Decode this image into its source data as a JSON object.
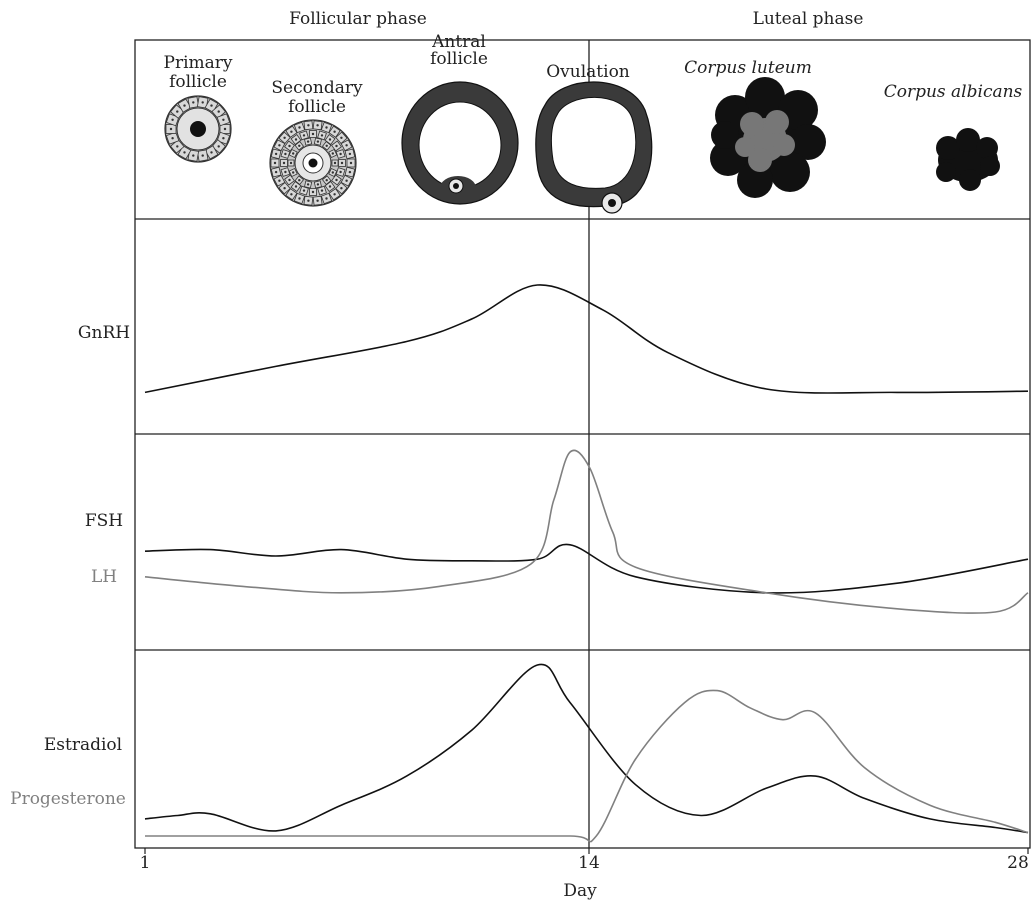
{
  "phases": {
    "follicular": "Follicular phase",
    "luteal": "Luteal phase"
  },
  "stages": {
    "primary": [
      "Primary",
      "follicle"
    ],
    "secondary": [
      "Secondary",
      "follicle"
    ],
    "antral": [
      "Antral",
      "follicle"
    ],
    "ovulation": "Ovulation",
    "corpus_luteum": "Corpus luteum",
    "corpus_albicans": "Corpus albicans"
  },
  "panels": {
    "gnrh": "GnRH",
    "fsh": "FSH",
    "lh": "LH",
    "estradiol": "Estradiol",
    "progesterone": "Progesterone"
  },
  "axis": {
    "ticks": [
      "1",
      "14",
      "28"
    ],
    "label": "Day"
  },
  "colors": {
    "black_curve": "#111111",
    "grey_curve": "#808080"
  },
  "chart_data": [
    {
      "type": "line",
      "x_range": [
        1,
        28
      ],
      "series": [
        {
          "name": "GnRH",
          "x": [
            1,
            5,
            9,
            11,
            13,
            15,
            17,
            20,
            24,
            28
          ],
          "y": [
            0.05,
            0.28,
            0.5,
            0.7,
            1.0,
            0.78,
            0.4,
            0.08,
            0.05,
            0.06
          ]
        }
      ]
    },
    {
      "type": "line",
      "x_range": [
        1,
        28
      ],
      "series": [
        {
          "name": "FSH",
          "x": [
            1,
            3,
            5,
            7,
            9,
            11,
            13,
            14,
            16,
            20,
            24,
            28
          ],
          "y": [
            0.38,
            0.39,
            0.35,
            0.39,
            0.33,
            0.32,
            0.33,
            0.42,
            0.22,
            0.12,
            0.18,
            0.33
          ]
        },
        {
          "name": "LH",
          "x": [
            1,
            4,
            7,
            10,
            12.8,
            13.5,
            14,
            14.6,
            15.3,
            16,
            20,
            24,
            27,
            28
          ],
          "y": [
            0.22,
            0.16,
            0.12,
            0.16,
            0.3,
            0.7,
            1.0,
            0.9,
            0.5,
            0.28,
            0.12,
            0.02,
            0.0,
            0.12
          ]
        }
      ]
    },
    {
      "type": "line",
      "x_range": [
        1,
        28
      ],
      "series": [
        {
          "name": "Estradiol",
          "x": [
            1,
            2,
            3,
            5,
            7,
            9,
            11,
            13,
            14,
            16,
            18,
            20,
            21.5,
            23,
            25,
            27,
            28
          ],
          "y": [
            0.1,
            0.12,
            0.13,
            0.03,
            0.18,
            0.35,
            0.62,
            1.0,
            0.78,
            0.3,
            0.12,
            0.28,
            0.35,
            0.22,
            0.1,
            0.05,
            0.02
          ]
        },
        {
          "name": "Progesterone",
          "x": [
            1,
            5,
            10,
            14,
            14.8,
            16,
            17.5,
            18.5,
            19.5,
            20.5,
            21.5,
            23,
            25,
            27,
            28
          ],
          "y": [
            0.0,
            0.0,
            0.0,
            0.0,
            0.0,
            0.45,
            0.78,
            0.85,
            0.75,
            0.68,
            0.72,
            0.4,
            0.18,
            0.08,
            0.02
          ]
        }
      ]
    }
  ]
}
